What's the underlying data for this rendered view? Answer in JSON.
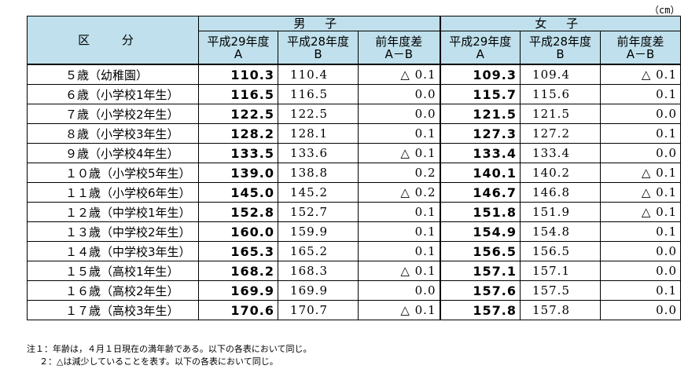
{
  "unit": "（cm）",
  "header": {
    "kubun": "区 分",
    "male": "男 子",
    "female": "女 子",
    "col_a_1": "平成29年度",
    "col_a_2": "A",
    "col_b_1": "平成28年度",
    "col_b_2": "B",
    "col_d_1": "前年度差",
    "col_d_2": "A－B"
  },
  "rows": [
    {
      "label": "５歳（幼稚園）",
      "m_a": "110.3",
      "m_b": "110.4",
      "m_d": "△ 0.1",
      "f_a": "109.3",
      "f_b": "109.4",
      "f_d": "△ 0.1"
    },
    {
      "label": "６歳（小学校1年生）",
      "m_a": "116.5",
      "m_b": "116.5",
      "m_d": "0.0",
      "f_a": "115.7",
      "f_b": "115.6",
      "f_d": "0.1"
    },
    {
      "label": "７歳（小学校2年生）",
      "m_a": "122.5",
      "m_b": "122.5",
      "m_d": "0.0",
      "f_a": "121.5",
      "f_b": "121.5",
      "f_d": "0.0"
    },
    {
      "label": "８歳（小学校3年生）",
      "m_a": "128.2",
      "m_b": "128.1",
      "m_d": "0.1",
      "f_a": "127.3",
      "f_b": "127.2",
      "f_d": "0.1"
    },
    {
      "label": "９歳（小学校4年生）",
      "m_a": "133.5",
      "m_b": "133.6",
      "m_d": "△ 0.1",
      "f_a": "133.4",
      "f_b": "133.4",
      "f_d": "0.0"
    },
    {
      "label": "１０歳（小学校5年生）",
      "m_a": "139.0",
      "m_b": "138.8",
      "m_d": "0.2",
      "f_a": "140.1",
      "f_b": "140.2",
      "f_d": "△ 0.1"
    },
    {
      "label": "１１歳（小学校6年生）",
      "m_a": "145.0",
      "m_b": "145.2",
      "m_d": "△ 0.2",
      "f_a": "146.7",
      "f_b": "146.8",
      "f_d": "△ 0.1"
    },
    {
      "label": "１２歳（中学校1年生）",
      "m_a": "152.8",
      "m_b": "152.7",
      "m_d": "0.1",
      "f_a": "151.8",
      "f_b": "151.9",
      "f_d": "△ 0.1"
    },
    {
      "label": "１３歳（中学校2年生）",
      "m_a": "160.0",
      "m_b": "159.9",
      "m_d": "0.1",
      "f_a": "154.9",
      "f_b": "154.8",
      "f_d": "0.1"
    },
    {
      "label": "１４歳（中学校3年生）",
      "m_a": "165.3",
      "m_b": "165.2",
      "m_d": "0.1",
      "f_a": "156.5",
      "f_b": "156.5",
      "f_d": "0.0"
    },
    {
      "label": "１５歳（高校1年生）",
      "m_a": "168.2",
      "m_b": "168.3",
      "m_d": "△ 0.1",
      "f_a": "157.1",
      "f_b": "157.1",
      "f_d": "0.0"
    },
    {
      "label": "１６歳（高校2年生）",
      "m_a": "169.9",
      "m_b": "169.9",
      "m_d": "0.0",
      "f_a": "157.6",
      "f_b": "157.5",
      "f_d": "0.1"
    },
    {
      "label": "１７歳（高校3年生）",
      "m_a": "170.6",
      "m_b": "170.7",
      "m_d": "△ 0.1",
      "f_a": "157.8",
      "f_b": "157.8",
      "f_d": "0.0"
    }
  ],
  "notes": [
    "注１：年齢は，４月１日現在の満年齢である。以下の各表において同じ。",
    "２：△は減少していることを表す。以下の各表において同じ。"
  ]
}
